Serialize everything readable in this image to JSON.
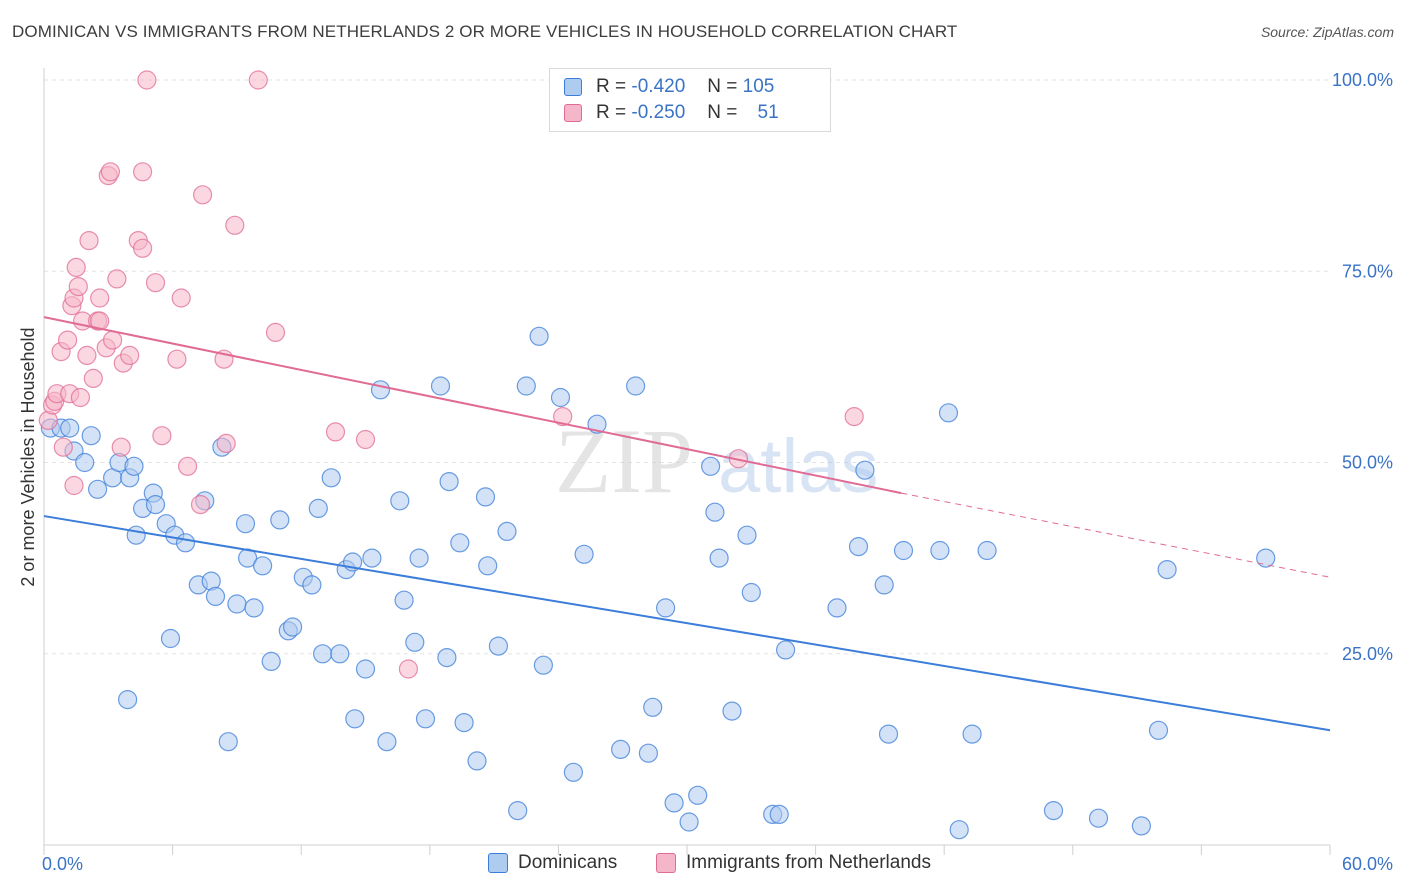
{
  "title": "DOMINICAN VS IMMIGRANTS FROM NETHERLANDS 2 OR MORE VEHICLES IN HOUSEHOLD CORRELATION CHART",
  "source": "Source: ZipAtlas.com",
  "watermark": {
    "zip": "ZIP",
    "atlas": "atlas"
  },
  "colors": {
    "blue": "#3b7dd8",
    "blue_fill": "#aecbf0",
    "pink": "#e06b95",
    "pink_fill": "#f5b6c9",
    "axis_label": "#3a73c6"
  },
  "legend": {
    "r_label": "R =",
    "n_label": "N =",
    "rows": [
      {
        "r": "-0.420",
        "n": "105"
      },
      {
        "r": "-0.250",
        "n": "51"
      }
    ]
  },
  "chart_data": {
    "type": "scatter",
    "ylabel": "2 or more Vehicles in Household",
    "xlim": [
      0,
      60
    ],
    "ylim": [
      0,
      100
    ],
    "x_tick_labels": [
      "0.0%",
      "60.0%"
    ],
    "y_ticks": [
      {
        "value": 100,
        "label": "100.0%"
      },
      {
        "value": 75,
        "label": "75.0%"
      },
      {
        "value": 50,
        "label": "50.0%"
      },
      {
        "value": 25,
        "label": "25.0%"
      }
    ],
    "grid": true,
    "series": [
      {
        "name": "Dominicans",
        "color": "#3b7dd8",
        "trend": {
          "x0": 0,
          "y0": 43,
          "x1": 60,
          "y1": 15
        },
        "points": [
          [
            0.3,
            54.5
          ],
          [
            0.8,
            54.5
          ],
          [
            1.2,
            54.5
          ],
          [
            1.4,
            51.5
          ],
          [
            2.2,
            53.5
          ],
          [
            1.9,
            50
          ],
          [
            2.5,
            46.5
          ],
          [
            3.2,
            48
          ],
          [
            3.5,
            50
          ],
          [
            4.0,
            48
          ],
          [
            4.2,
            49.5
          ],
          [
            4.3,
            40.5
          ],
          [
            4.6,
            44
          ],
          [
            5.1,
            46
          ],
          [
            5.2,
            44.5
          ],
          [
            5.7,
            42
          ],
          [
            6.1,
            40.5
          ],
          [
            6.6,
            39.5
          ],
          [
            7.2,
            34
          ],
          [
            7.5,
            45
          ],
          [
            7.8,
            34.5
          ],
          [
            8.0,
            32.5
          ],
          [
            5.9,
            27
          ],
          [
            8.3,
            52
          ],
          [
            8.6,
            13.5
          ],
          [
            9.0,
            31.5
          ],
          [
            9.5,
            37.5
          ],
          [
            9.4,
            42
          ],
          [
            9.8,
            31
          ],
          [
            10.2,
            36.5
          ],
          [
            10.6,
            24
          ],
          [
            11.0,
            42.5
          ],
          [
            11.4,
            28
          ],
          [
            11.6,
            28.5
          ],
          [
            12.1,
            35
          ],
          [
            12.5,
            34
          ],
          [
            12.8,
            44
          ],
          [
            13.0,
            25
          ],
          [
            13.4,
            48
          ],
          [
            13.8,
            25
          ],
          [
            14.1,
            36
          ],
          [
            14.4,
            37
          ],
          [
            14.5,
            16.5
          ],
          [
            15.0,
            23
          ],
          [
            15.3,
            37.5
          ],
          [
            15.7,
            59.5
          ],
          [
            16.0,
            13.5
          ],
          [
            16.6,
            45
          ],
          [
            16.8,
            32
          ],
          [
            17.3,
            26.5
          ],
          [
            17.5,
            37.5
          ],
          [
            17.8,
            16.5
          ],
          [
            18.5,
            60
          ],
          [
            18.8,
            24.5
          ],
          [
            18.9,
            47.5
          ],
          [
            19.4,
            39.5
          ],
          [
            19.6,
            16
          ],
          [
            20.2,
            11
          ],
          [
            20.6,
            45.5
          ],
          [
            20.7,
            36.5
          ],
          [
            21.2,
            26
          ],
          [
            21.6,
            41
          ],
          [
            22.1,
            4.5
          ],
          [
            22.5,
            60
          ],
          [
            23.1,
            66.5
          ],
          [
            23.3,
            23.5
          ],
          [
            24.1,
            58.5
          ],
          [
            24.7,
            9.5
          ],
          [
            25.2,
            38
          ],
          [
            25.8,
            55
          ],
          [
            26.9,
            12.5
          ],
          [
            27.6,
            60
          ],
          [
            28.2,
            12
          ],
          [
            28.4,
            18
          ],
          [
            29.0,
            31
          ],
          [
            29.4,
            5.5
          ],
          [
            30.1,
            3
          ],
          [
            30.5,
            6.5
          ],
          [
            31.1,
            49.5
          ],
          [
            31.3,
            43.5
          ],
          [
            31.5,
            37.5
          ],
          [
            32.1,
            17.5
          ],
          [
            32.8,
            40.5
          ],
          [
            33.0,
            33
          ],
          [
            34.0,
            4
          ],
          [
            34.3,
            4
          ],
          [
            34.6,
            25.5
          ],
          [
            37.0,
            31
          ],
          [
            38.0,
            39
          ],
          [
            38.3,
            49
          ],
          [
            39.2,
            34
          ],
          [
            39.4,
            14.5
          ],
          [
            40.1,
            38.5
          ],
          [
            41.8,
            38.5
          ],
          [
            42.2,
            56.5
          ],
          [
            42.7,
            2
          ],
          [
            43.3,
            14.5
          ],
          [
            44.0,
            38.5
          ],
          [
            47.1,
            4.5
          ],
          [
            49.2,
            3.5
          ],
          [
            51.2,
            2.5
          ],
          [
            52.0,
            15
          ],
          [
            52.4,
            36
          ],
          [
            57.0,
            37.5
          ],
          [
            3.9,
            19
          ]
        ]
      },
      {
        "name": "Immigrants from Netherlands",
        "color": "#e06b95",
        "trend": {
          "x0": 0,
          "y0": 69,
          "x1": 40,
          "y1": 46,
          "dash_x1": 60,
          "dash_y1": 35
        },
        "points": [
          [
            0.2,
            55.5
          ],
          [
            0.4,
            57.5
          ],
          [
            0.5,
            58
          ],
          [
            0.6,
            59
          ],
          [
            0.8,
            64.5
          ],
          [
            0.9,
            52
          ],
          [
            1.1,
            66
          ],
          [
            1.2,
            59
          ],
          [
            1.3,
            70.5
          ],
          [
            1.4,
            71.5
          ],
          [
            1.4,
            47
          ],
          [
            1.5,
            75.5
          ],
          [
            1.6,
            73
          ],
          [
            1.7,
            58.5
          ],
          [
            1.8,
            68.5
          ],
          [
            2.0,
            64
          ],
          [
            2.1,
            79
          ],
          [
            2.3,
            61
          ],
          [
            2.5,
            68.5
          ],
          [
            2.6,
            68.5
          ],
          [
            2.6,
            71.5
          ],
          [
            2.9,
            65
          ],
          [
            3.0,
            87.5
          ],
          [
            3.1,
            88
          ],
          [
            3.2,
            66
          ],
          [
            3.4,
            74
          ],
          [
            3.6,
            52
          ],
          [
            3.7,
            63
          ],
          [
            4.0,
            64
          ],
          [
            4.4,
            79
          ],
          [
            4.6,
            78
          ],
          [
            4.6,
            88
          ],
          [
            4.8,
            100
          ],
          [
            5.2,
            73.5
          ],
          [
            5.5,
            53.5
          ],
          [
            6.2,
            63.5
          ],
          [
            6.4,
            71.5
          ],
          [
            6.7,
            49.5
          ],
          [
            7.3,
            44.5
          ],
          [
            7.4,
            85
          ],
          [
            8.4,
            63.5
          ],
          [
            8.5,
            52.5
          ],
          [
            8.9,
            81
          ],
          [
            10.0,
            100
          ],
          [
            10.8,
            67
          ],
          [
            13.6,
            54
          ],
          [
            15.0,
            53
          ],
          [
            17.0,
            23
          ],
          [
            24.2,
            56
          ],
          [
            32.4,
            50.5
          ],
          [
            37.8,
            56
          ]
        ]
      }
    ]
  }
}
